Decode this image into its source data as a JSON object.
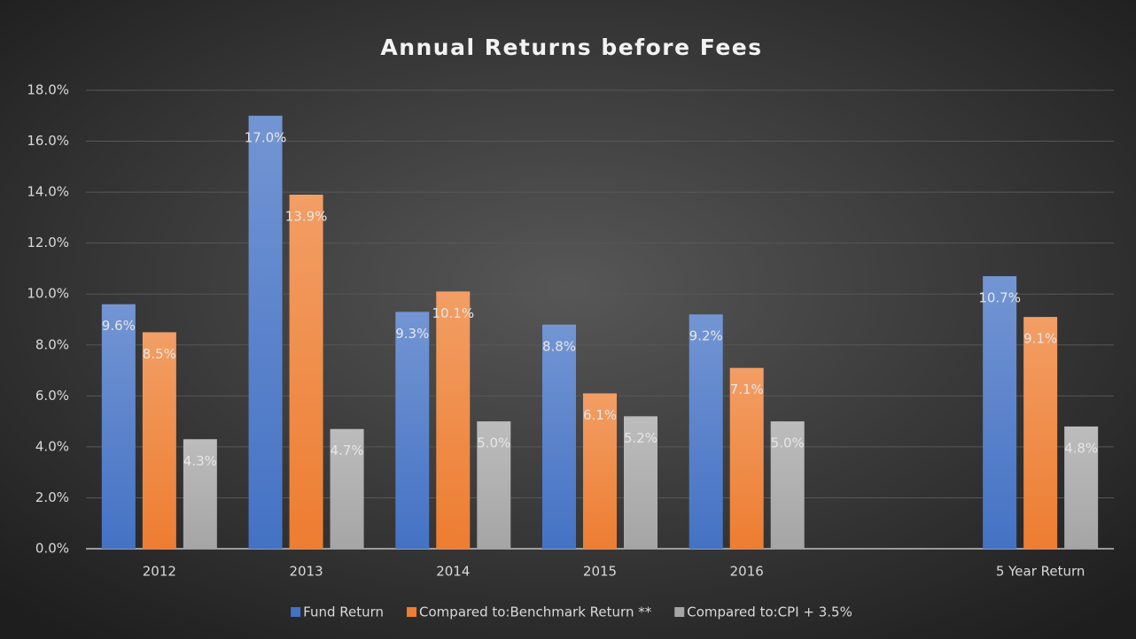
{
  "chart_data": {
    "type": "bar",
    "title": "Annual Returns before Fees",
    "categories": [
      "2012",
      "2013",
      "2014",
      "2015",
      "2016",
      null,
      "5 Year Return"
    ],
    "series": [
      {
        "name": "Fund Return",
        "color": "#4472c4",
        "values": [
          9.6,
          17.0,
          9.3,
          8.8,
          9.2,
          null,
          10.7
        ],
        "value_labels": [
          "9.6%",
          "17.0%",
          "9.3%",
          "8.8%",
          "9.2%",
          null,
          "10.7%"
        ]
      },
      {
        "name": "Compared to:Benchmark Return **",
        "color": "#ed7d31",
        "values": [
          8.5,
          13.9,
          10.1,
          6.1,
          7.1,
          null,
          9.1
        ],
        "value_labels": [
          "8.5%",
          "13.9%",
          "10.1%",
          "6.1%",
          "7.1%",
          null,
          "9.1%"
        ]
      },
      {
        "name": "Compared to:CPI + 3.5%",
        "color": "#a5a5a5",
        "values": [
          4.3,
          4.7,
          5.0,
          5.2,
          5.0,
          null,
          4.8
        ],
        "value_labels": [
          "4.3%",
          "4.7%",
          "5.0%",
          "5.2%",
          "5.0%",
          null,
          "4.8%"
        ]
      }
    ],
    "ylim": [
      0,
      18
    ],
    "yticks": [
      {
        "value": 0,
        "label": "0.0%"
      },
      {
        "value": 2,
        "label": "2.0%"
      },
      {
        "value": 4,
        "label": "4.0%"
      },
      {
        "value": 6,
        "label": "6.0%"
      },
      {
        "value": 8,
        "label": "8.0%"
      },
      {
        "value": 10,
        "label": "10.0%"
      },
      {
        "value": 12,
        "label": "12.0%"
      },
      {
        "value": 14,
        "label": "14.0%"
      },
      {
        "value": 16,
        "label": "16.0%"
      },
      {
        "value": 18,
        "label": "18.0%"
      }
    ],
    "grid": true,
    "legend": "bottom"
  }
}
